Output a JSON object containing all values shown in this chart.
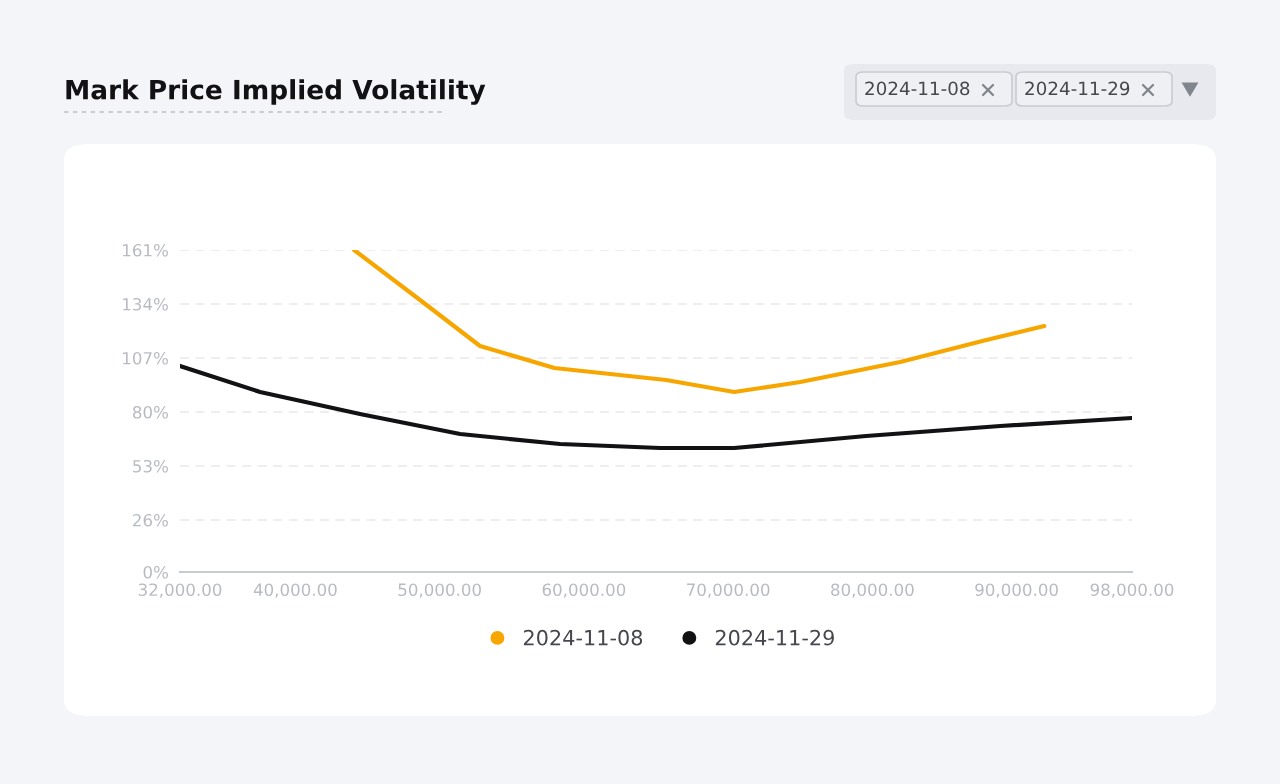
{
  "chart_data": {
    "type": "line",
    "title": "Mark Price Implied Volatility",
    "annotations": [
      "2024-11-08",
      "2024-11-29"
    ],
    "series": [
      {
        "name": "2024-11-08",
        "color": "#f7a600",
        "x": [
          44070,
          48640,
          52800,
          57960,
          65700,
          70420,
          75000,
          81930,
          87900,
          91920
        ],
        "values": [
          161,
          136,
          113,
          102,
          96,
          90,
          95,
          105,
          116,
          123
        ]
      },
      {
        "name": "2024-11-29",
        "color": "#121214",
        "x": [
          32000,
          37550,
          44480,
          51420,
          58350,
          65290,
          70420,
          79570,
          88870,
          98000
        ],
        "values": [
          103,
          90,
          79,
          69,
          64,
          62,
          62,
          68,
          73,
          77
        ]
      }
    ],
    "xlim": [
      32000,
      98000
    ],
    "xticks": [
      {
        "value": 32000,
        "label": "32,000.00"
      },
      {
        "value": 40000,
        "label": "40,000.00"
      },
      {
        "value": 50000,
        "label": "50,000.00"
      },
      {
        "value": 60000,
        "label": "60,000.00"
      },
      {
        "value": 70000,
        "label": "70,000.00"
      },
      {
        "value": 80000,
        "label": "80,000.00"
      },
      {
        "value": 90000,
        "label": "90,000.00"
      },
      {
        "value": 98000,
        "label": "98,000.00"
      }
    ],
    "ylim": [
      0,
      161
    ],
    "yticks": [
      {
        "value": 0,
        "label": "0%"
      },
      {
        "value": 26,
        "label": "26%"
      },
      {
        "value": 53,
        "label": "53%"
      },
      {
        "value": 80,
        "label": "80%"
      },
      {
        "value": 107,
        "label": "107%"
      },
      {
        "value": 134,
        "label": "134%"
      },
      {
        "value": 161,
        "label": "161%"
      }
    ],
    "grid": "y",
    "legend": "bottom",
    "marker": "none",
    "line_style": "solid"
  }
}
